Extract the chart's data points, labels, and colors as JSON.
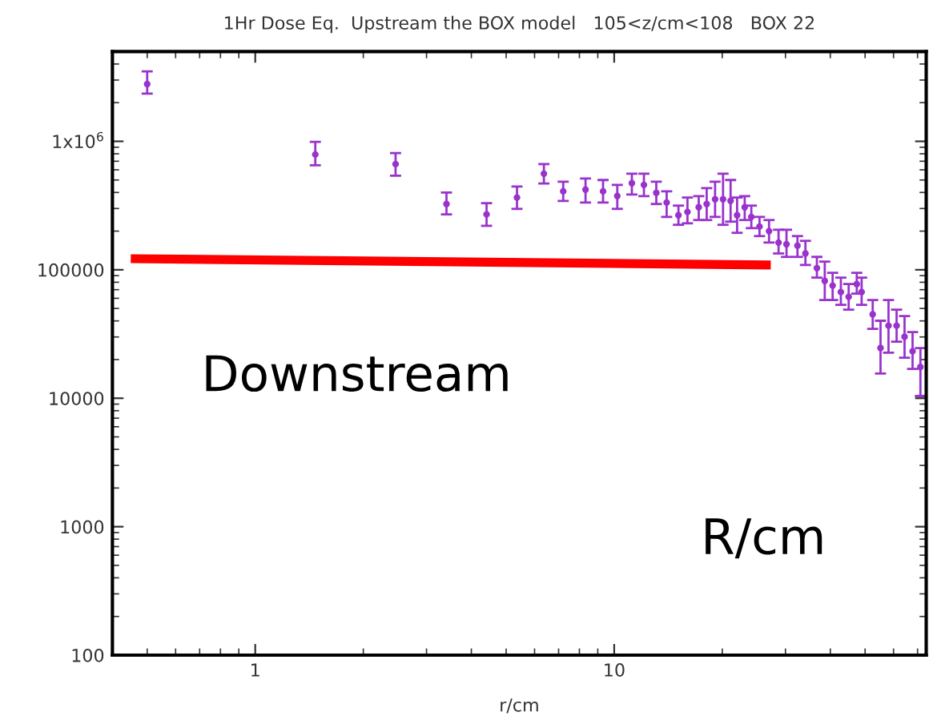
{
  "chart_data": {
    "type": "scatter",
    "title": "1Hr Dose Eq.  Upstream the BOX model   105<z/cm<108   BOX 22",
    "xlabel": "r/cm",
    "log": "xy",
    "xlim": [
      0.4,
      74
    ],
    "ylim": [
      100,
      5000000
    ],
    "xticks": [
      1,
      10
    ],
    "yticks": [
      100,
      1000,
      10000,
      100000,
      {
        "value": 1000000,
        "label": "1x10$^{6}$"
      }
    ],
    "grid": false,
    "legend": false,
    "annotations": [
      "Downstream",
      "R/cm"
    ],
    "series": [
      {
        "color": "#9933cc",
        "marker": "circle",
        "x": [
          0.5,
          1.47,
          2.46,
          3.41,
          4.41,
          5.36,
          6.37,
          7.21,
          8.32,
          9.31,
          10.2,
          11.2,
          12.1,
          13.1,
          14.0,
          15.1,
          16.0,
          17.2,
          18.1,
          19.1,
          20.1,
          21.1,
          22.0,
          23.1,
          24.1,
          25.4,
          27.0,
          28.7,
          30.2,
          32.4,
          34.1,
          36.7,
          38.6,
          40.6,
          42.8,
          45.0,
          47.4,
          48.9,
          52.5,
          55.2,
          58.1,
          61.2,
          64.4,
          67.8,
          71.3
        ],
        "values": [
          2790000,
          790000,
          665000,
          325000,
          270000,
          365000,
          560000,
          408000,
          421000,
          408000,
          375000,
          472000,
          458000,
          397000,
          334000,
          266000,
          282000,
          307000,
          325000,
          354000,
          354000,
          344000,
          266000,
          307000,
          258000,
          217000,
          200000,
          163000,
          158000,
          154000,
          134000,
          103000,
          82000,
          75300,
          67100,
          61600,
          77400,
          67100,
          45000,
          24600,
          36700,
          36700,
          30100,
          23200,
          17500
        ],
        "errors": [
          [
            2350000,
            3500000
          ],
          [
            650000,
            990000
          ],
          [
            540000,
            810000
          ],
          [
            270000,
            400000
          ],
          [
            220000,
            330000
          ],
          [
            298000,
            445000
          ],
          [
            470000,
            665000
          ],
          [
            344000,
            485000
          ],
          [
            334000,
            514000
          ],
          [
            334000,
            500000
          ],
          [
            298000,
            458000
          ],
          [
            386000,
            560000
          ],
          [
            375000,
            560000
          ],
          [
            325000,
            485000
          ],
          [
            258000,
            408000
          ],
          [
            224000,
            316000
          ],
          [
            230000,
            365000
          ],
          [
            244000,
            375000
          ],
          [
            244000,
            433000
          ],
          [
            258000,
            485000
          ],
          [
            224000,
            560000
          ],
          [
            237000,
            500000
          ],
          [
            194000,
            365000
          ],
          [
            244000,
            375000
          ],
          [
            211000,
            316000
          ],
          [
            183000,
            258000
          ],
          [
            163000,
            244000
          ],
          [
            134000,
            205000
          ],
          [
            126000,
            205000
          ],
          [
            126000,
            183000
          ],
          [
            109000,
            168000
          ],
          [
            87000,
            126000
          ],
          [
            58200,
            116000
          ],
          [
            58200,
            94700
          ],
          [
            53300,
            86900
          ],
          [
            49000,
            77400
          ],
          [
            65200,
            94700
          ],
          [
            53300,
            86900
          ],
          [
            34700,
            58200
          ],
          [
            15600,
            40100
          ],
          [
            22600,
            58200
          ],
          [
            27600,
            49000
          ],
          [
            20700,
            43700
          ],
          [
            16900,
            32700
          ],
          [
            10400,
            24600
          ]
        ]
      },
      {
        "type": "line",
        "marker": "none",
        "color": "#ff0000",
        "x": [
          0.45,
          27.3
        ],
        "values": [
          122000,
          109000
        ]
      }
    ]
  }
}
